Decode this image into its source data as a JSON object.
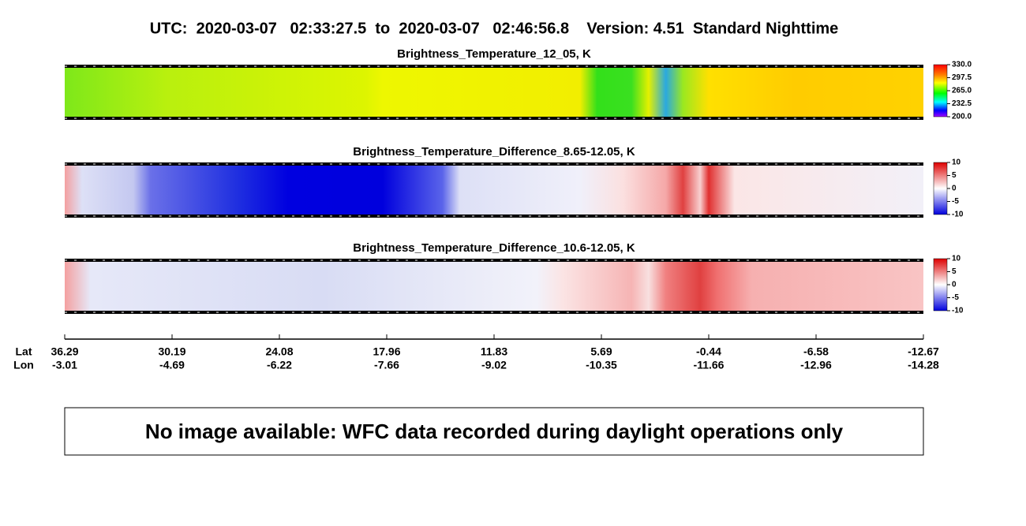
{
  "header": {
    "title": "UTC:  2020-03-07   02:33:27.5  to  2020-03-07   02:46:56.8    Version: 4.51  Standard Nighttime"
  },
  "panels": [
    {
      "title": "Brightness_Temperature_12_05, K",
      "colorbar_labels": [
        "330.0",
        "297.5",
        "265.0",
        "232.5",
        "200.0"
      ]
    },
    {
      "title": "Brightness_Temperature_Difference_8.65-12.05, K",
      "colorbar_labels": [
        "10",
        "5",
        "0",
        "-5",
        "-10"
      ]
    },
    {
      "title": "Brightness_Temperature_Difference_10.6-12.05, K",
      "colorbar_labels": [
        "10",
        "5",
        "0",
        "-5",
        "-10"
      ]
    }
  ],
  "axis": {
    "lat_label": "Lat",
    "lon_label": "Lon",
    "lat": [
      "36.29",
      "30.19",
      "24.08",
      "17.96",
      "11.83",
      "5.69",
      "-0.44",
      "-6.58",
      "-12.67"
    ],
    "lon": [
      "-3.01",
      "-4.69",
      "-6.22",
      "-7.66",
      "-9.02",
      "-10.35",
      "-11.66",
      "-12.96",
      "-14.28"
    ]
  },
  "message": "No image available: WFC data recorded during daylight operations only"
}
